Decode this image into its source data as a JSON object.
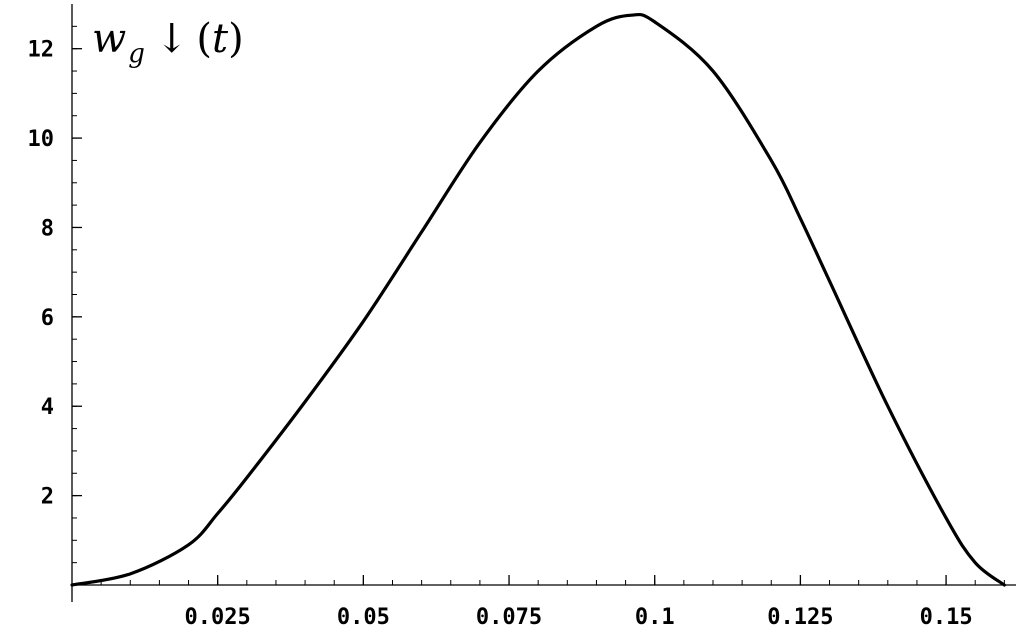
{
  "chart_data": {
    "type": "line",
    "title": {
      "symbol": "w",
      "subscript": "g",
      "arrow": "↓",
      "open": "(",
      "var": "t",
      "close": ")"
    },
    "xlabel": "",
    "ylabel": "",
    "xlim": [
      0,
      0.162
    ],
    "ylim": [
      0,
      13
    ],
    "grid": false,
    "legend": "none",
    "line_color": "#000000",
    "x_ticks": [
      {
        "value": 0.025,
        "label": "0.025"
      },
      {
        "value": 0.05,
        "label": "0.05"
      },
      {
        "value": 0.075,
        "label": "0.075"
      },
      {
        "value": 0.1,
        "label": "0.1"
      },
      {
        "value": 0.125,
        "label": "0.125"
      },
      {
        "value": 0.15,
        "label": "0.15"
      }
    ],
    "y_ticks": [
      {
        "value": 2,
        "label": "2"
      },
      {
        "value": 4,
        "label": "4"
      },
      {
        "value": 6,
        "label": "6"
      },
      {
        "value": 8,
        "label": "8"
      },
      {
        "value": 10,
        "label": "10"
      },
      {
        "value": 12,
        "label": "12"
      }
    ],
    "x_minor_step": 0.005,
    "y_minor_step": 0.5,
    "series": [
      {
        "x": [
          0,
          0.01,
          0.02,
          0.025,
          0.03,
          0.04,
          0.05,
          0.06,
          0.07,
          0.08,
          0.09,
          0.096,
          0.1,
          0.11,
          0.12,
          0.125,
          0.13,
          0.14,
          0.15,
          0.155,
          0.16
        ],
        "values": [
          0,
          0.25,
          0.9,
          1.6,
          2.4,
          4.1,
          5.9,
          7.9,
          9.9,
          11.5,
          12.5,
          12.75,
          12.6,
          11.5,
          9.5,
          8.2,
          6.8,
          4.0,
          1.5,
          0.5,
          0
        ]
      }
    ]
  }
}
